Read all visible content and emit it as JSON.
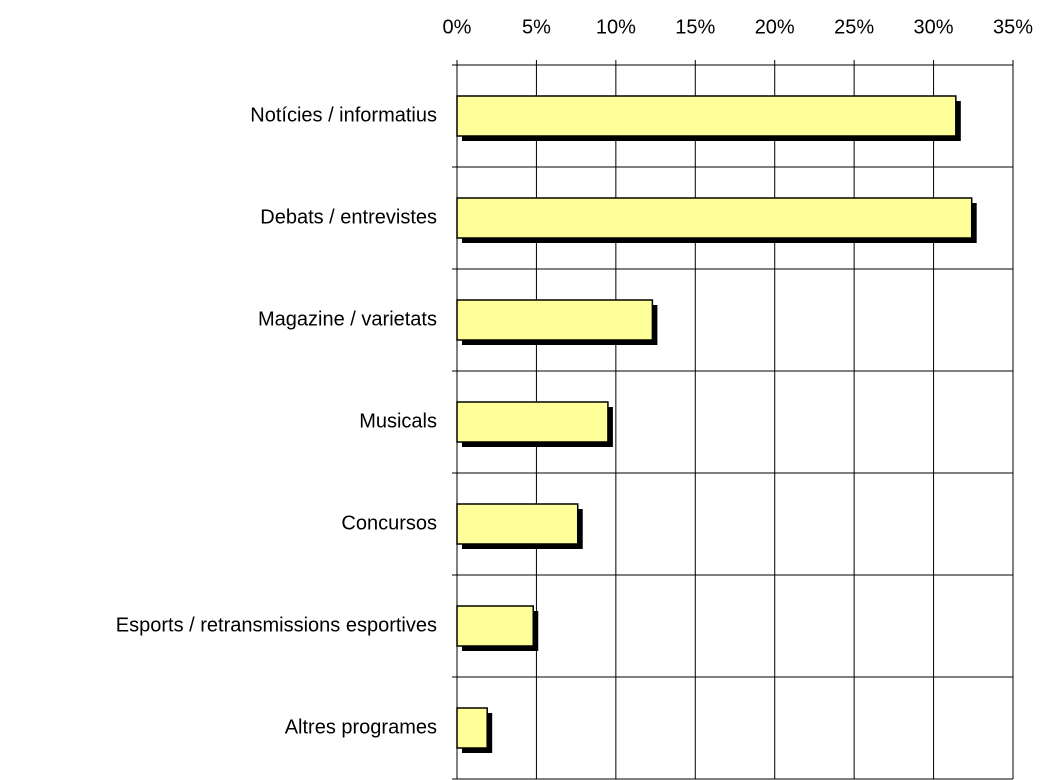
{
  "chart_data": {
    "type": "barh",
    "categories": [
      "Notícies / informatius",
      "Debats / entrevistes",
      "Magazine / varietats",
      "Musicals",
      "Concursos",
      "Esports / retransmissions esportives",
      "Altres programes"
    ],
    "values": [
      31.4,
      32.4,
      12.3,
      9.5,
      7.6,
      4.8,
      1.9
    ],
    "color": "#ffff99",
    "xlim": [
      0,
      35
    ],
    "xticks": [
      {
        "value": 0,
        "label": "0%"
      },
      {
        "value": 5,
        "label": "5%"
      },
      {
        "value": 10,
        "label": "10%"
      },
      {
        "value": 15,
        "label": "15%"
      },
      {
        "value": 20,
        "label": "20%"
      },
      {
        "value": 25,
        "label": "25%"
      },
      {
        "value": 30,
        "label": "30%"
      },
      {
        "value": 35,
        "label": "35%"
      }
    ],
    "grid": true
  }
}
